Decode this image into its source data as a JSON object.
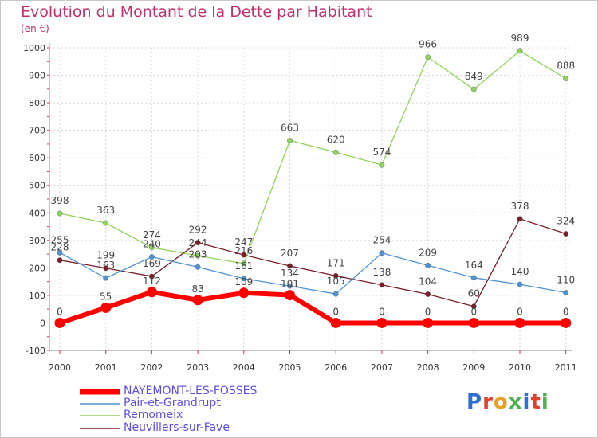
{
  "chart_data": {
    "type": "line",
    "title": "Evolution du Montant de la Dette par Habitant",
    "subtitle": "(en €)",
    "xlabel": "",
    "ylabel": "",
    "ylim": [
      -100,
      1000
    ],
    "yticks": [
      -100,
      0,
      100,
      200,
      300,
      400,
      500,
      600,
      700,
      800,
      900,
      1000
    ],
    "grid": true,
    "legend": "bottom-left",
    "categories": [
      "2000",
      "2001",
      "2002",
      "2003",
      "2004",
      "2005",
      "2006",
      "2007",
      "2008",
      "2009",
      "2010",
      "2011"
    ],
    "series": [
      {
        "name": "NAYEMONT-LES-FOSSES",
        "color": "#ff0000",
        "values": [
          0,
          55,
          112,
          83,
          109,
          101,
          0,
          0,
          0,
          0,
          0,
          0
        ],
        "labels": [
          "0",
          "55",
          "112",
          "83",
          "109",
          "101",
          "0",
          "0",
          "0",
          "0",
          "0",
          "0"
        ]
      },
      {
        "name": "Pair-et-Grandrupt",
        "color": "#4f93d3",
        "values": [
          255,
          163,
          240,
          203,
          161,
          134,
          105,
          254,
          209,
          164,
          140,
          110
        ],
        "labels": [
          "255",
          "163",
          "240",
          "203",
          "161",
          "134",
          "105",
          "254",
          "209",
          "164",
          "140",
          "110"
        ]
      },
      {
        "name": "Remomeix",
        "color": "#8fd35a",
        "values": [
          398,
          363,
          274,
          244,
          216,
          663,
          620,
          574,
          966,
          849,
          989,
          888
        ],
        "labels": [
          "398",
          "363",
          "274",
          "244",
          "216",
          "663",
          "620",
          "574",
          "966",
          "849",
          "989",
          "888"
        ]
      },
      {
        "name": "Neuvillers-sur-Fave",
        "color": "#7a1f27",
        "values": [
          228,
          199,
          169,
          292,
          247,
          207,
          171,
          138,
          104,
          60,
          378,
          324
        ],
        "labels": [
          "228",
          "199",
          "169",
          "292",
          "247",
          "207",
          "171",
          "138",
          "104",
          "60",
          "378",
          "324"
        ]
      }
    ]
  },
  "brand": {
    "logo_text": "Proxiti"
  }
}
